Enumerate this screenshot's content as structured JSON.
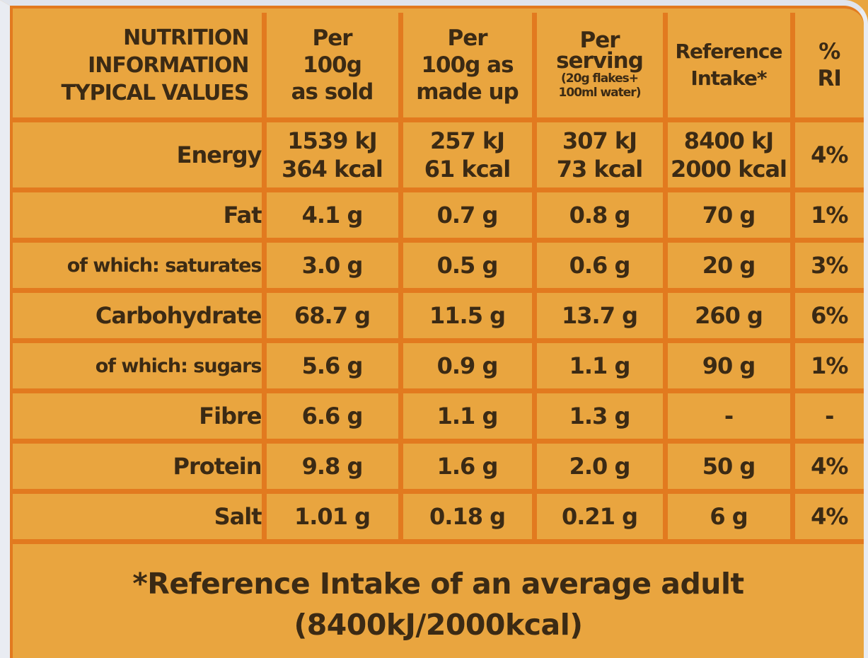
{
  "header": {
    "label_lines": [
      "NUTRITION",
      "INFORMATION",
      "TYPICAL VALUES"
    ],
    "col_per100g_sold": [
      "Per",
      "100g",
      "as sold"
    ],
    "col_per100g_made": [
      "Per",
      "100g as",
      "made up"
    ],
    "col_serving_main": [
      "Per",
      "serving"
    ],
    "col_serving_note": [
      "(20g flakes+",
      "100ml water)"
    ],
    "col_reference": [
      "Reference",
      "Intake*"
    ],
    "col_ri": [
      "%",
      "RI"
    ]
  },
  "rows": [
    {
      "label": "Energy",
      "sold": [
        "1539 kJ",
        "364 kcal"
      ],
      "made": [
        "257 kJ",
        "61 kcal"
      ],
      "serving": [
        "307 kJ",
        "73 kcal"
      ],
      "ref": [
        "8400 kJ",
        "2000 kcal"
      ],
      "ri": "4%"
    },
    {
      "label": "Fat",
      "sold": "4.1 g",
      "made": "0.7 g",
      "serving": "0.8 g",
      "ref": "70 g",
      "ri": "1%"
    },
    {
      "label": "of which: saturates",
      "sold": "3.0 g",
      "made": "0.5 g",
      "serving": "0.6 g",
      "ref": "20 g",
      "ri": "3%"
    },
    {
      "label": "Carbohydrate",
      "sold": "68.7 g",
      "made": "11.5 g",
      "serving": "13.7 g",
      "ref": "260 g",
      "ri": "6%"
    },
    {
      "label": "of which: sugars",
      "sold": "5.6 g",
      "made": "0.9 g",
      "serving": "1.1 g",
      "ref": "90 g",
      "ri": "1%"
    },
    {
      "label": "Fibre",
      "sold": "6.6 g",
      "made": "1.1 g",
      "serving": "1.3 g",
      "ref": "-",
      "ri": "-"
    },
    {
      "label": "Protein",
      "sold": "9.8 g",
      "made": "1.6 g",
      "serving": "2.0 g",
      "ref": "50 g",
      "ri": "4%"
    },
    {
      "label": "Salt",
      "sold": "1.01 g",
      "made": "0.18 g",
      "serving": "0.21 g",
      "ref": "6 g",
      "ri": "4%"
    }
  ],
  "footnote": {
    "line1": "*Reference Intake of an average adult",
    "line2": "(8400kJ/2000kcal)"
  },
  "colors": {
    "panel_fill": "#e9a53f",
    "rule_orange": "#e27a1f",
    "text_brown": "#3b2a14",
    "edge_white": "#e9ecf2"
  }
}
